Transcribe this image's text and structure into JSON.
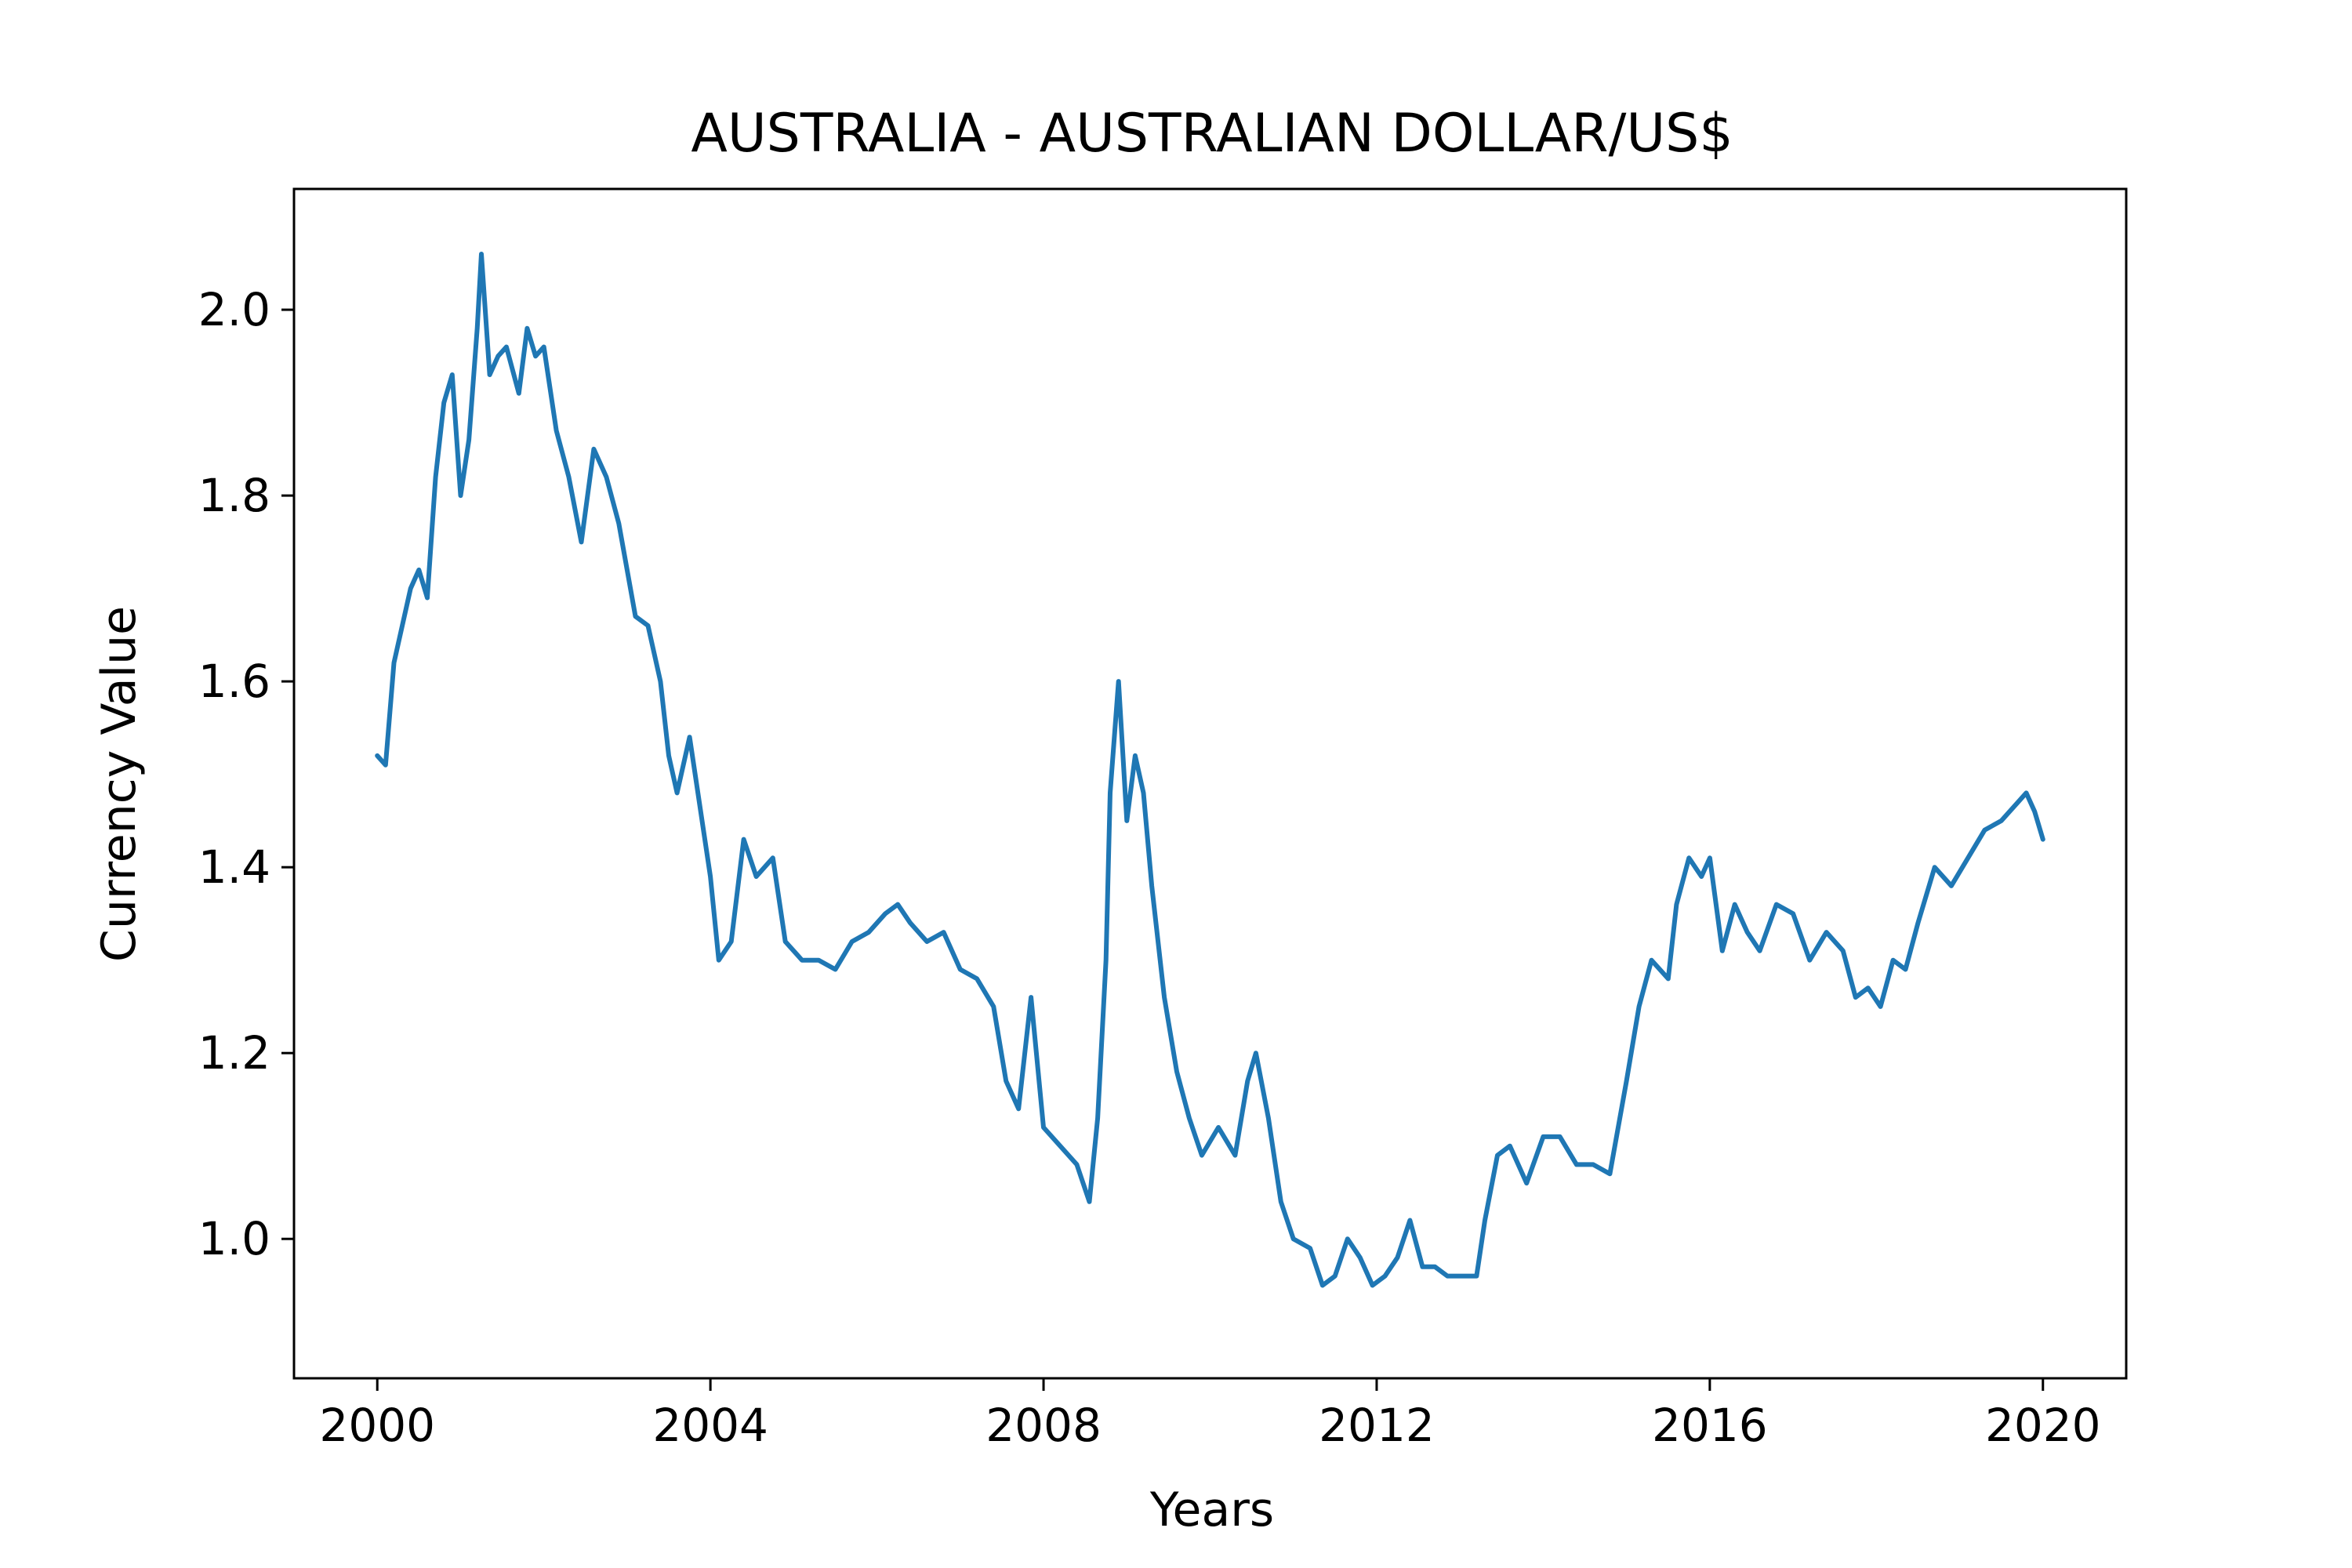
{
  "chart_data": {
    "type": "line",
    "title": "AUSTRALIA - AUSTRALIAN DOLLAR/US$",
    "xlabel": "Years",
    "ylabel": "Currency Value",
    "xlim": [
      1999.0,
      2021.0
    ],
    "ylim": [
      0.85,
      2.13
    ],
    "x_ticks": [
      "2000",
      "2004",
      "2008",
      "2012",
      "2016",
      "2020"
    ],
    "y_ticks": [
      "1.0",
      "1.2",
      "1.4",
      "1.6",
      "1.8",
      "2.0"
    ],
    "grid": false,
    "legend": "none",
    "line_color": "#1f77b4",
    "series": [
      {
        "x": [
          2000.0,
          2000.1,
          2000.2,
          2000.3,
          2000.4,
          2000.5,
          2000.6,
          2000.7,
          2000.8,
          2000.9,
          2001.0,
          2001.1,
          2001.2,
          2001.25,
          2001.35,
          2001.45,
          2001.55,
          2001.7,
          2001.8,
          2001.9,
          2002.0,
          2002.15,
          2002.3,
          2002.45,
          2002.6,
          2002.75,
          2002.9,
          2003.1,
          2003.25,
          2003.4,
          2003.5,
          2003.6,
          2003.75,
          2003.9,
          2004.0,
          2004.1,
          2004.25,
          2004.4,
          2004.55,
          2004.75,
          2004.9,
          2005.1,
          2005.3,
          2005.5,
          2005.7,
          2005.9,
          2006.1,
          2006.25,
          2006.4,
          2006.6,
          2006.8,
          2007.0,
          2007.2,
          2007.4,
          2007.55,
          2007.7,
          2007.85,
          2008.0,
          2008.2,
          2008.4,
          2008.55,
          2008.65,
          2008.75,
          2008.8,
          2008.9,
          2009.0,
          2009.1,
          2009.2,
          2009.3,
          2009.45,
          2009.6,
          2009.75,
          2009.9,
          2010.1,
          2010.3,
          2010.45,
          2010.55,
          2010.7,
          2010.85,
          2011.0,
          2011.2,
          2011.35,
          2011.5,
          2011.65,
          2011.8,
          2011.95,
          2012.1,
          2012.25,
          2012.4,
          2012.55,
          2012.7,
          2012.85,
          2013.0,
          2013.2,
          2013.3,
          2013.45,
          2013.6,
          2013.8,
          2014.0,
          2014.2,
          2014.4,
          2014.6,
          2014.8,
          2015.0,
          2015.15,
          2015.3,
          2015.5,
          2015.6,
          2015.75,
          2015.9,
          2016.0,
          2016.15,
          2016.3,
          2016.45,
          2016.6,
          2016.8,
          2017.0,
          2017.2,
          2017.4,
          2017.6,
          2017.75,
          2017.9,
          2018.05,
          2018.2,
          2018.35,
          2018.5,
          2018.7,
          2018.9,
          2019.1,
          2019.3,
          2019.5,
          2019.7,
          2019.8,
          2019.9,
          2020.0
        ],
        "y": [
          1.52,
          1.51,
          1.62,
          1.66,
          1.7,
          1.72,
          1.69,
          1.82,
          1.9,
          1.93,
          1.8,
          1.86,
          1.98,
          2.06,
          1.93,
          1.95,
          1.96,
          1.91,
          1.98,
          1.95,
          1.96,
          1.87,
          1.82,
          1.75,
          1.85,
          1.82,
          1.77,
          1.67,
          1.66,
          1.6,
          1.52,
          1.48,
          1.54,
          1.45,
          1.39,
          1.3,
          1.32,
          1.43,
          1.39,
          1.41,
          1.32,
          1.3,
          1.3,
          1.29,
          1.32,
          1.33,
          1.35,
          1.36,
          1.34,
          1.32,
          1.33,
          1.29,
          1.28,
          1.25,
          1.17,
          1.14,
          1.26,
          1.12,
          1.1,
          1.08,
          1.04,
          1.13,
          1.3,
          1.48,
          1.6,
          1.45,
          1.52,
          1.48,
          1.38,
          1.26,
          1.18,
          1.13,
          1.09,
          1.12,
          1.09,
          1.17,
          1.2,
          1.13,
          1.04,
          1.0,
          0.99,
          0.95,
          0.96,
          1.0,
          0.98,
          0.95,
          0.96,
          0.98,
          1.02,
          0.97,
          0.97,
          0.96,
          0.96,
          0.96,
          1.02,
          1.09,
          1.1,
          1.06,
          1.11,
          1.11,
          1.08,
          1.08,
          1.07,
          1.17,
          1.25,
          1.3,
          1.28,
          1.36,
          1.41,
          1.39,
          1.41,
          1.31,
          1.36,
          1.33,
          1.31,
          1.36,
          1.35,
          1.3,
          1.33,
          1.31,
          1.26,
          1.27,
          1.25,
          1.3,
          1.29,
          1.34,
          1.4,
          1.38,
          1.41,
          1.44,
          1.45,
          1.47,
          1.48,
          1.46,
          1.43
        ]
      }
    ]
  }
}
